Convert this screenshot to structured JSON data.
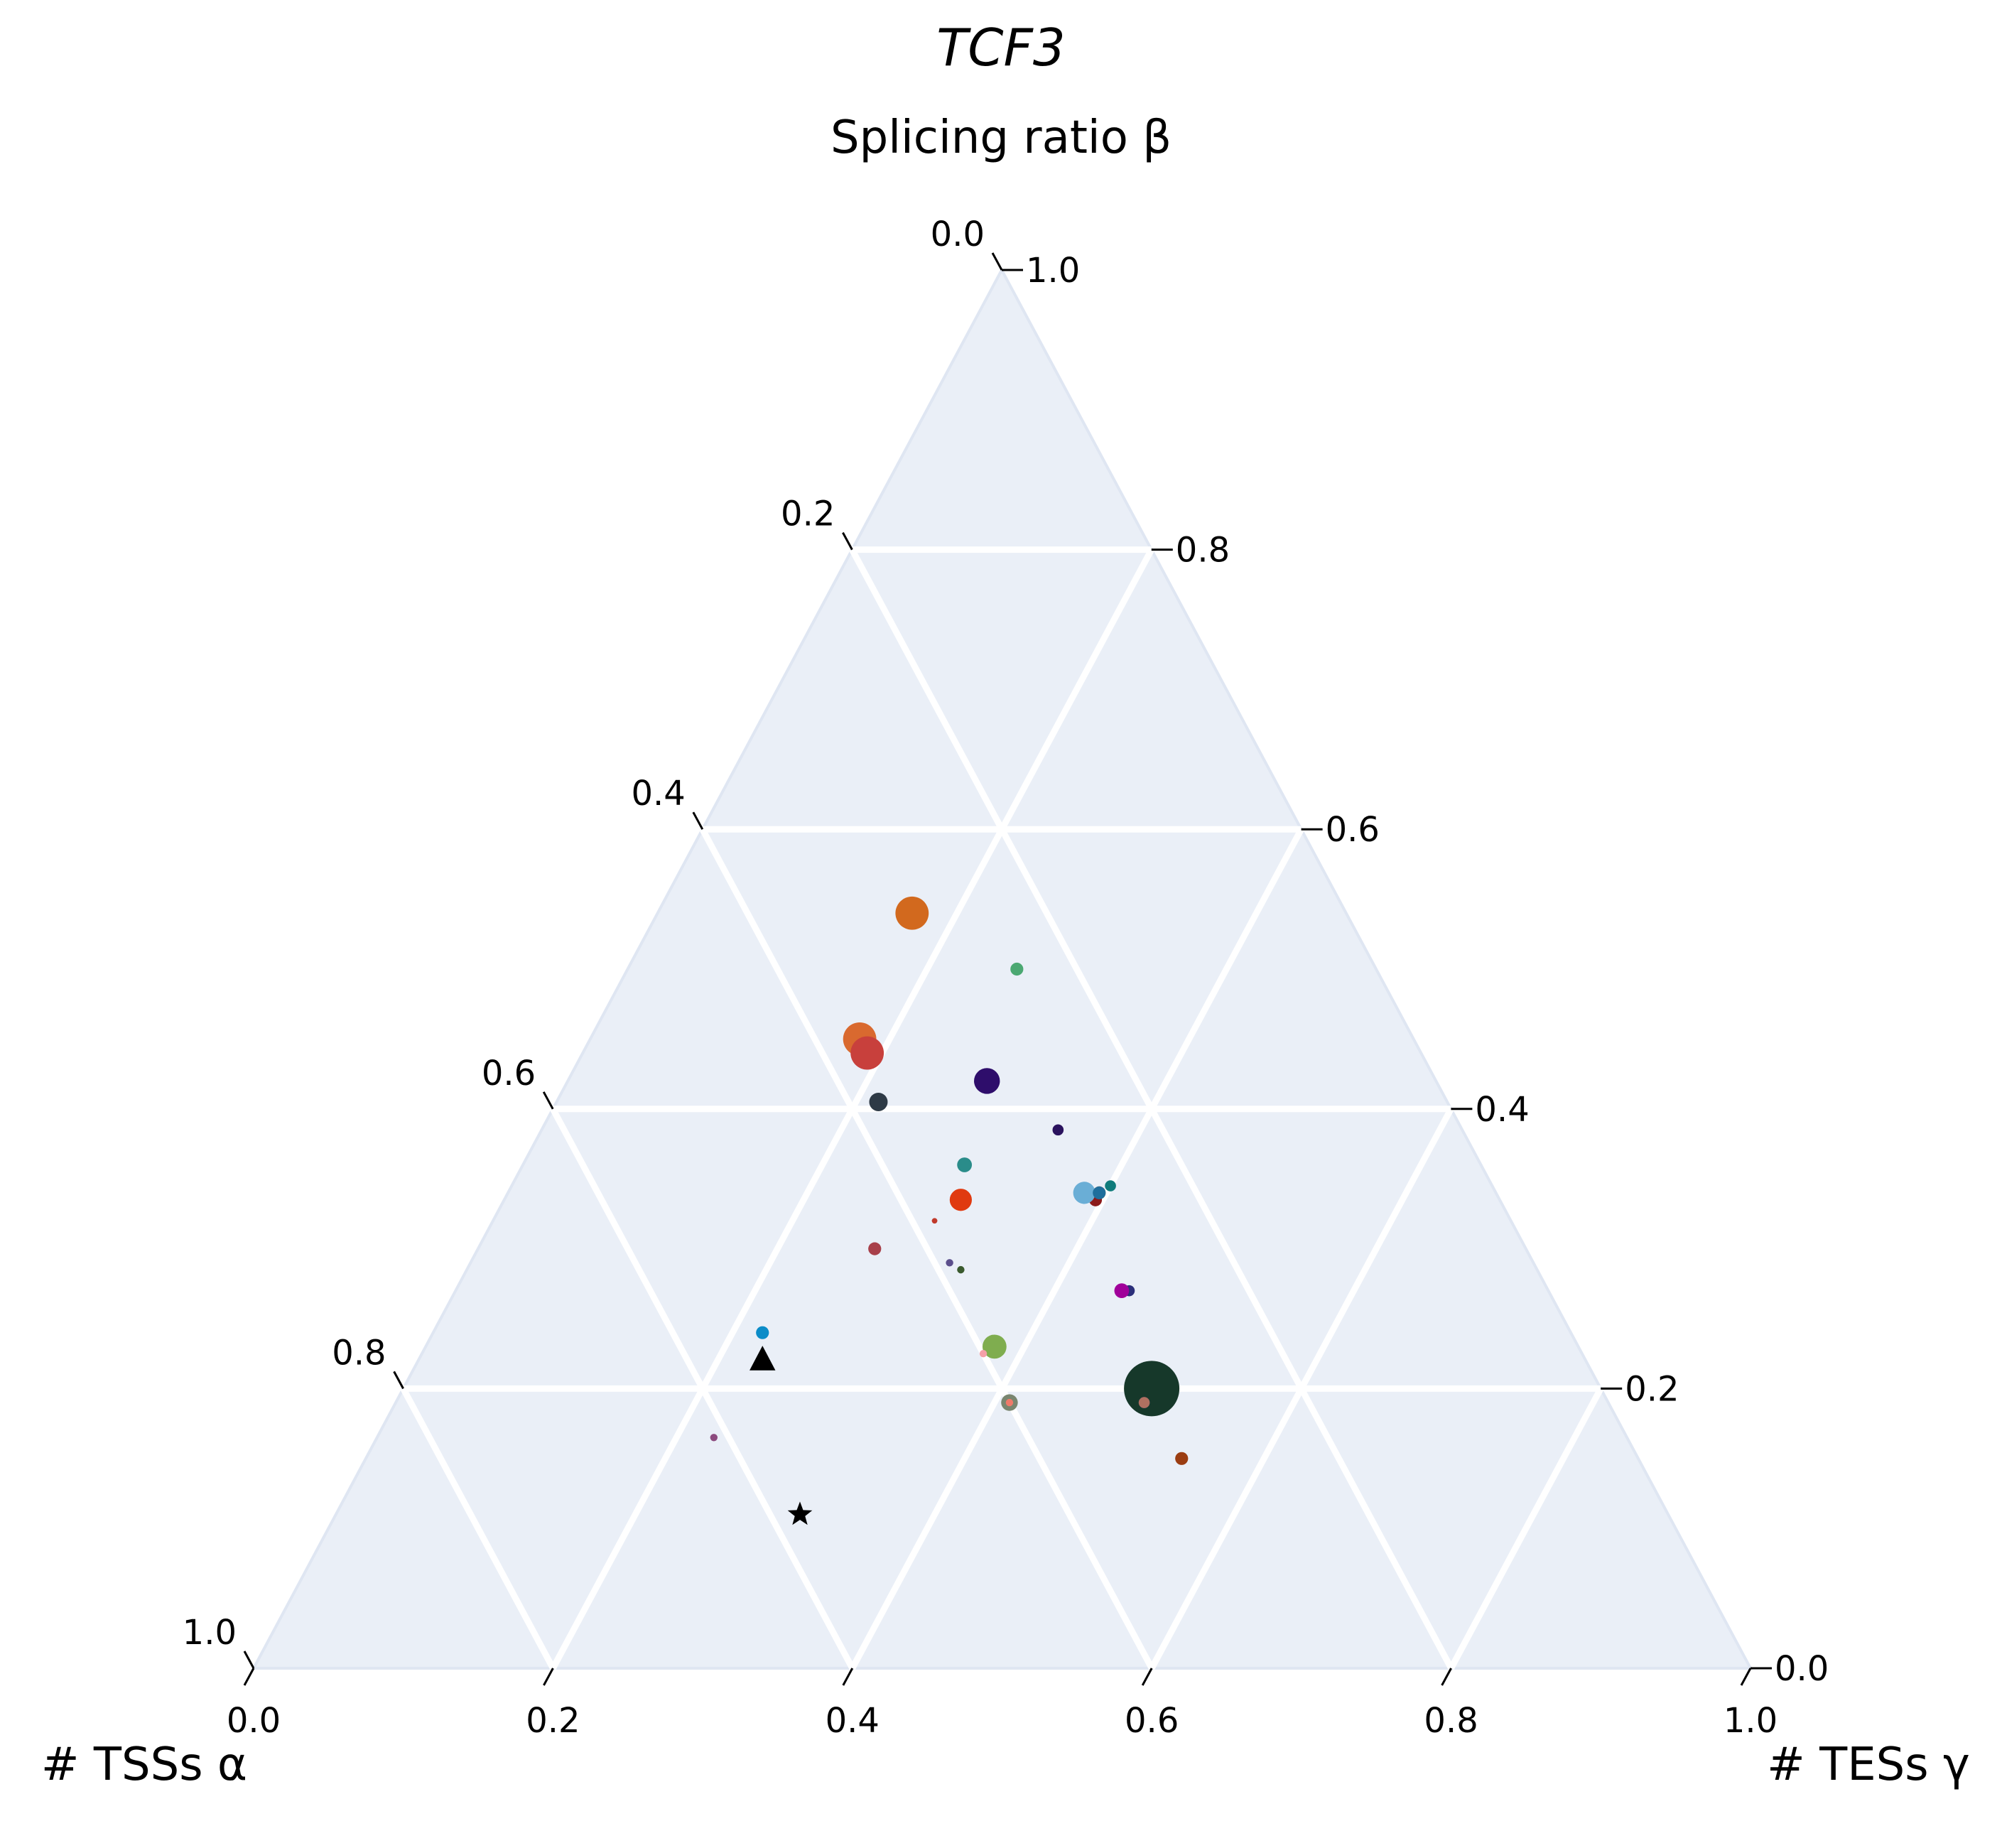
{
  "chart_data": {
    "type": "scatter",
    "subtype": "ternary",
    "title": "TCF3",
    "axes": {
      "top": {
        "label": "Splicing ratio β",
        "ticks": [
          "0.0",
          "0.2",
          "0.4",
          "0.6",
          "0.8",
          "1.0"
        ]
      },
      "left": {
        "label": "# TSSs α",
        "ticks": [
          "0.0",
          "0.2",
          "0.4",
          "0.6",
          "0.8",
          "1.0"
        ]
      },
      "right": {
        "label": "# TESs γ",
        "ticks": [
          "0.0",
          "0.2",
          "0.4",
          "0.6",
          "0.8",
          "1.0"
        ]
      }
    },
    "background_color": "#eaeff7",
    "grid": true,
    "grid_color": "#ffffff",
    "points": [
      {
        "alpha": 0.29,
        "beta": 0.54,
        "gamma": 0.17,
        "size": 1.8,
        "color": "#d2691e",
        "marker": "circle"
      },
      {
        "alpha": 0.24,
        "beta": 0.5,
        "gamma": 0.26,
        "size": 0.7,
        "color": "#4ba872",
        "marker": "circle"
      },
      {
        "alpha": 0.37,
        "beta": 0.45,
        "gamma": 0.18,
        "size": 1.8,
        "color": "#d9692f",
        "marker": "circle"
      },
      {
        "alpha": 0.37,
        "beta": 0.44,
        "gamma": 0.19,
        "size": 1.8,
        "color": "#c8403c",
        "marker": "circle"
      },
      {
        "alpha": 0.3,
        "beta": 0.42,
        "gamma": 0.28,
        "size": 1.4,
        "color": "#2e0d6b",
        "marker": "circle"
      },
      {
        "alpha": 0.38,
        "beta": 0.405,
        "gamma": 0.215,
        "size": 1.0,
        "color": "#2e3a46",
        "marker": "circle"
      },
      {
        "alpha": 0.27,
        "beta": 0.385,
        "gamma": 0.345,
        "size": 0.6,
        "color": "#2a125e",
        "marker": "circle"
      },
      {
        "alpha": 0.345,
        "beta": 0.36,
        "gamma": 0.295,
        "size": 0.8,
        "color": "#2a8c8a",
        "marker": "circle"
      },
      {
        "alpha": 0.255,
        "beta": 0.345,
        "gamma": 0.4,
        "size": 0.6,
        "color": "#0f7b7b",
        "marker": "circle"
      },
      {
        "alpha": 0.265,
        "beta": 0.34,
        "gamma": 0.395,
        "size": 0.7,
        "color": "#f28c28",
        "marker": "circle"
      },
      {
        "alpha": 0.27,
        "beta": 0.335,
        "gamma": 0.395,
        "size": 0.7,
        "color": "#8b1a1a",
        "marker": "circle"
      },
      {
        "alpha": 0.275,
        "beta": 0.34,
        "gamma": 0.385,
        "size": 1.2,
        "color": "#6aaed6",
        "marker": "circle"
      },
      {
        "alpha": 0.265,
        "beta": 0.34,
        "gamma": 0.395,
        "size": 0.7,
        "color": "#1f6e9c",
        "marker": "circle"
      },
      {
        "alpha": 0.36,
        "beta": 0.335,
        "gamma": 0.305,
        "size": 1.2,
        "color": "#e03a10",
        "marker": "circle"
      },
      {
        "alpha": 0.385,
        "beta": 0.32,
        "gamma": 0.295,
        "size": 0.3,
        "color": "#c0392b",
        "marker": "circle"
      },
      {
        "alpha": 0.435,
        "beta": 0.3,
        "gamma": 0.265,
        "size": 0.7,
        "color": "#a8404a",
        "marker": "circle"
      },
      {
        "alpha": 0.39,
        "beta": 0.29,
        "gamma": 0.32,
        "size": 0.4,
        "color": "#5b4e8c",
        "marker": "circle"
      },
      {
        "alpha": 0.385,
        "beta": 0.285,
        "gamma": 0.33,
        "size": 0.4,
        "color": "#3a5a2e",
        "marker": "circle"
      },
      {
        "alpha": 0.28,
        "beta": 0.27,
        "gamma": 0.45,
        "size": 0.6,
        "color": "#2b2f7a",
        "marker": "circle"
      },
      {
        "alpha": 0.285,
        "beta": 0.27,
        "gamma": 0.445,
        "size": 0.8,
        "color": "#a0009a",
        "marker": "circle"
      },
      {
        "alpha": 0.39,
        "beta": 0.23,
        "gamma": 0.38,
        "size": 1.3,
        "color": "#7fad4f",
        "marker": "circle"
      },
      {
        "alpha": 0.4,
        "beta": 0.225,
        "gamma": 0.375,
        "size": 0.4,
        "color": "#f4a0a8",
        "marker": "circle"
      },
      {
        "alpha": 0.54,
        "beta": 0.24,
        "gamma": 0.22,
        "size": 0.7,
        "color": "#0b8cc8",
        "marker": "circle"
      },
      {
        "alpha": 0.55,
        "beta": 0.22,
        "gamma": 0.23,
        "size": 1.4,
        "color": "#000000",
        "marker": "triangle"
      },
      {
        "alpha": 0.3,
        "beta": 0.2,
        "gamma": 0.5,
        "size": 3.0,
        "color": "#16382a",
        "marker": "circle"
      },
      {
        "alpha": 0.31,
        "beta": 0.19,
        "gamma": 0.5,
        "size": 0.6,
        "color": "#2c2e8a",
        "marker": "circle"
      },
      {
        "alpha": 0.31,
        "beta": 0.19,
        "gamma": 0.5,
        "size": 0.6,
        "color": "#b07060",
        "marker": "circle"
      },
      {
        "alpha": 0.4,
        "beta": 0.19,
        "gamma": 0.41,
        "size": 0.9,
        "color": "#7a8670",
        "marker": "circle"
      },
      {
        "alpha": 0.4,
        "beta": 0.19,
        "gamma": 0.41,
        "size": 0.4,
        "color": "#f07a6a",
        "marker": "circle"
      },
      {
        "alpha": 0.305,
        "beta": 0.15,
        "gamma": 0.545,
        "size": 0.7,
        "color": "#9b3d12",
        "marker": "circle"
      },
      {
        "alpha": 0.61,
        "beta": 0.165,
        "gamma": 0.225,
        "size": 0.4,
        "color": "#8c4a7e",
        "marker": "circle"
      },
      {
        "alpha": 0.58,
        "beta": 0.11,
        "gamma": 0.31,
        "size": 1.4,
        "color": "#000000",
        "marker": "star"
      }
    ]
  }
}
